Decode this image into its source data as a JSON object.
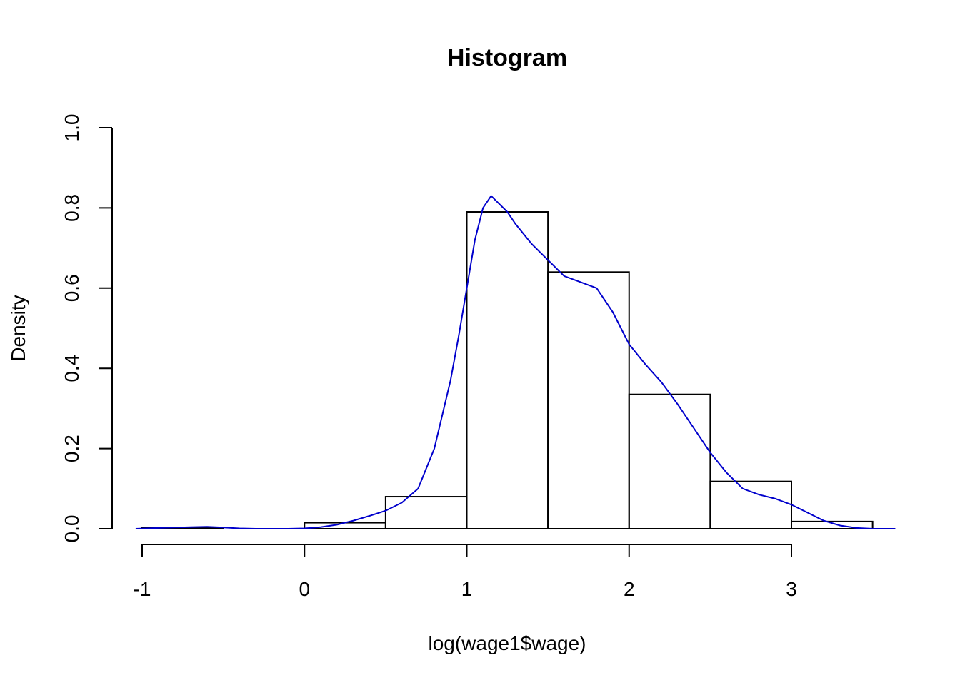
{
  "chart_data": {
    "type": "bar",
    "title": "Histogram",
    "xlabel": "log(wage1$wage)",
    "ylabel": "Density",
    "xlim": [
      -1.04,
      3.64
    ],
    "ylim": [
      0,
      1.0
    ],
    "x_ticks": [
      -1,
      0,
      1,
      2,
      3
    ],
    "x_tick_labels": [
      "-1",
      "0",
      "1",
      "2",
      "3"
    ],
    "y_ticks": [
      0,
      0.2,
      0.4,
      0.6,
      0.8,
      1.0
    ],
    "y_tick_labels": [
      "0.0",
      "0.2",
      "0.4",
      "0.6",
      "0.8",
      "1.0"
    ],
    "grid": false,
    "bins": [
      {
        "x0": -1.0,
        "x1": -0.5,
        "density": 0.002
      },
      {
        "x0": 0.0,
        "x1": 0.5,
        "density": 0.015
      },
      {
        "x0": 0.5,
        "x1": 1.0,
        "density": 0.08
      },
      {
        "x0": 1.0,
        "x1": 1.5,
        "density": 0.79
      },
      {
        "x0": 1.5,
        "x1": 2.0,
        "density": 0.64
      },
      {
        "x0": 2.0,
        "x1": 2.5,
        "density": 0.335
      },
      {
        "x0": 2.5,
        "x1": 3.0,
        "density": 0.118
      },
      {
        "x0": 3.0,
        "x1": 3.5,
        "density": 0.018
      }
    ],
    "series": [
      {
        "type": "line",
        "color": "#0000cc",
        "x": [
          -1.04,
          -0.9,
          -0.8,
          -0.7,
          -0.6,
          -0.5,
          -0.4,
          -0.3,
          -0.2,
          -0.1,
          0.0,
          0.1,
          0.2,
          0.3,
          0.4,
          0.5,
          0.6,
          0.7,
          0.8,
          0.9,
          0.95,
          1.0,
          1.05,
          1.1,
          1.15,
          1.2,
          1.25,
          1.3,
          1.4,
          1.5,
          1.6,
          1.7,
          1.8,
          1.9,
          2.0,
          2.1,
          2.2,
          2.3,
          2.4,
          2.5,
          2.6,
          2.7,
          2.8,
          2.9,
          3.0,
          3.1,
          3.2,
          3.3,
          3.4,
          3.5,
          3.64
        ],
        "y": [
          0.0,
          0.002,
          0.003,
          0.004,
          0.005,
          0.003,
          0.001,
          0.0,
          0.0,
          0.0,
          0.001,
          0.004,
          0.01,
          0.02,
          0.032,
          0.045,
          0.065,
          0.1,
          0.2,
          0.37,
          0.48,
          0.6,
          0.72,
          0.8,
          0.83,
          0.81,
          0.79,
          0.76,
          0.71,
          0.67,
          0.63,
          0.615,
          0.6,
          0.54,
          0.46,
          0.41,
          0.365,
          0.31,
          0.25,
          0.19,
          0.14,
          0.1,
          0.085,
          0.075,
          0.06,
          0.04,
          0.02,
          0.008,
          0.002,
          0.0,
          0.0
        ]
      }
    ]
  }
}
